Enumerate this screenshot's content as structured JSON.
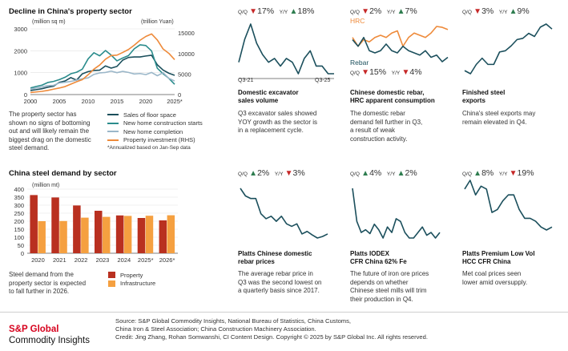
{
  "property": {
    "title": "Decline in China's property sector",
    "left_unit": "(million sq m)",
    "right_unit": "(trillion Yuan)",
    "body": [
      "The property sector has",
      "shown no signs of bottoming",
      "out and will likely remain the",
      "biggest drag on the domestic",
      "steel demand."
    ],
    "legend": [
      {
        "label": "Sales of floor space",
        "color": "#1b4f5c"
      },
      {
        "label": "New home construction starts",
        "color": "#2a8c8c"
      },
      {
        "label": "New home completion",
        "color": "#9bb7c9"
      },
      {
        "label": "Property investment (RHS)",
        "color": "#ee8a3a"
      }
    ],
    "footnote": "*Annualized based on Jan-Sep data"
  },
  "demand": {
    "title": "China steel demand by sector",
    "unit": "(million mt)",
    "body": [
      "Steel demand from the",
      "property sector is expected",
      "to fall further in 2026."
    ],
    "legend": [
      {
        "label": "Property",
        "color": "#b93020"
      },
      {
        "label": "Infrastructure",
        "color": "#f5a040"
      }
    ]
  },
  "panels": [
    {
      "qq_label": "Q/Q",
      "qq_dir": "down",
      "qq_val": "17%",
      "yy_label": "Y/Y",
      "yy_dir": "up",
      "yy_val": "18%",
      "title": [
        "Domestic excavator",
        "sales volume"
      ],
      "body": [
        "Q3 excavator sales showed",
        "YOY growth as the sector is",
        "in a replacement cycle."
      ],
      "x_start": "Q3-21",
      "x_end": "Q3-25"
    },
    {
      "qq_label": "Q/Q",
      "qq_dir": "down",
      "qq_val": "2%",
      "yy_label": "Y/Y",
      "yy_dir": "up",
      "yy_val": "7%",
      "hrc_label": "HRC",
      "rebar_label": "Rebar",
      "qq2_label": "Q/Q",
      "qq2_dir": "down",
      "qq2_val": "15%",
      "yy2_label": "Y/Y",
      "yy2_dir": "down",
      "yy2_val": "4%",
      "title": [
        "Chinese domestic rebar,",
        "HRC apparent consumption"
      ],
      "body": [
        "The domestic rebar",
        "demand fell further in Q3,",
        "a result of weak",
        "construction activity."
      ]
    },
    {
      "qq_label": "Q/Q",
      "qq_dir": "down",
      "qq_val": "3%",
      "yy_label": "Y/Y",
      "yy_dir": "up",
      "yy_val": "9%",
      "title": [
        "Finished steel",
        "exports"
      ],
      "body": [
        "China's steel exports may",
        "remain elevated in Q4."
      ]
    },
    {
      "qq_label": "Q/Q",
      "qq_dir": "up",
      "qq_val": "2%",
      "yy_label": "Y/Y",
      "yy_dir": "down",
      "yy_val": "3%",
      "title": [
        "Platts Chinese domestic",
        "rebar prices"
      ],
      "body": [
        "The average rebar price in",
        "Q3 was the second lowest on",
        "a quarterly basis since 2017."
      ]
    },
    {
      "qq_label": "Q/Q",
      "qq_dir": "up",
      "qq_val": "4%",
      "yy_label": "Y/Y",
      "yy_dir": "up",
      "yy_val": "2%",
      "title": [
        "Platts IODEX",
        "CFR China 62% Fe"
      ],
      "body": [
        "The future of iron ore prices",
        "depends on whether",
        "Chinese steel mills will trim",
        "their production in Q4."
      ]
    },
    {
      "qq_label": "Q/Q",
      "qq_dir": "up",
      "qq_val": "8%",
      "yy_label": "Y/Y",
      "yy_dir": "down",
      "yy_val": "19%",
      "title": [
        "Platts Premium Low Vol",
        "HCC CFR China"
      ],
      "body": [
        "Met coal prices seen",
        "lower amid oversupply."
      ]
    }
  ],
  "footer": {
    "brand_line1": "S&P Global",
    "brand_line2": "Commodity Insights",
    "source": [
      "Source: S&P Global Commodity Insights, National Bureau of Statistics, China Customs,",
      "China Iron & Steel Association; China Construction Machinery Association.",
      "Credit: Jing Zhang, Rohan Somwanshi, CI Content Design. Copyright © 2025 by S&P Global Inc. All rights reserved."
    ]
  },
  "chart_data": [
    {
      "type": "line",
      "title": "Decline in China's property sector",
      "left_unit": "(million sq m)",
      "right_unit": "(trillion Yuan)",
      "x": [
        2000,
        2001,
        2002,
        2003,
        2004,
        2005,
        2006,
        2007,
        2008,
        2009,
        2010,
        2011,
        2012,
        2013,
        2014,
        2015,
        2016,
        2017,
        2018,
        2019,
        2020,
        2021,
        2022,
        2023,
        2024,
        2025
      ],
      "x_tick_labels": [
        "2000",
        "2005",
        "2010",
        "2015",
        "2020",
        "2025*"
      ],
      "yleft_ticks": [
        "0",
        "1000",
        "2000",
        "3000"
      ],
      "yright_ticks": [
        "0",
        "5000",
        "10000",
        "15000"
      ],
      "ylim_left": [
        0,
        3000
      ],
      "ylim_right": [
        0,
        16000
      ],
      "series": [
        {
          "name": "Sales of floor space",
          "axis": "left",
          "color": "#1b4f5c",
          "values": [
            186,
            224,
            268,
            337,
            382,
            558,
            619,
            774,
            660,
            948,
            1047,
            1099,
            1113,
            1306,
            1206,
            1285,
            1573,
            1694,
            1717,
            1716,
            1761,
            1794,
            1358,
            1117,
            974,
            880
          ]
        },
        {
          "name": "New home construction starts",
          "axis": "left",
          "color": "#2a8c8c",
          "values": [
            300,
            370,
            430,
            550,
            600,
            680,
            790,
            950,
            1020,
            1160,
            1630,
            1910,
            1770,
            2010,
            1800,
            1540,
            1670,
            1780,
            2090,
            2270,
            2240,
            1990,
            1200,
            950,
            740,
            470
          ]
        },
        {
          "name": "New home completion",
          "axis": "left",
          "color": "#9bb7c9",
          "values": [
            250,
            300,
            350,
            410,
            420,
            530,
            560,
            600,
            660,
            720,
            760,
            920,
            990,
            1010,
            1070,
            1000,
            1060,
            1010,
            940,
            960,
            910,
            1010,
            860,
            1000,
            740,
            620
          ]
        },
        {
          "name": "Property investment (RHS)",
          "axis": "right",
          "color": "#ee8a3a",
          "values": [
            498,
            634,
            779,
            1015,
            1316,
            1591,
            1942,
            2528,
            3120,
            3624,
            4826,
            6180,
            7180,
            8601,
            9504,
            9598,
            10258,
            10980,
            12026,
            13219,
            14144,
            14760,
            13290,
            11090,
            10030,
            8500
          ]
        }
      ]
    },
    {
      "type": "bar",
      "title": "China steel demand by sector",
      "ylabel": "(million mt)",
      "categories": [
        "2020",
        "2021",
        "2022",
        "2023",
        "2024",
        "2025*",
        "2026*"
      ],
      "ylim": [
        0,
        400
      ],
      "y_ticks": [
        "0",
        "50",
        "100",
        "150",
        "200",
        "250",
        "300",
        "350",
        "400"
      ],
      "series": [
        {
          "name": "Property",
          "color": "#b93020",
          "values": [
            363,
            348,
            298,
            265,
            236,
            220,
            205
          ]
        },
        {
          "name": "Infrastructure",
          "color": "#f5a040",
          "values": [
            200,
            201,
            222,
            227,
            233,
            234,
            237
          ]
        }
      ]
    },
    {
      "type": "line",
      "title": "Domestic excavator sales volume",
      "x_tick_labels": [
        "Q3-21",
        "Q3-25"
      ],
      "series": [
        {
          "color": "#1b4f5c",
          "values": [
            6,
            12,
            16,
            11,
            8,
            6,
            7,
            5,
            7,
            6,
            3,
            7,
            9,
            5,
            5,
            3,
            3
          ]
        }
      ]
    },
    {
      "type": "line",
      "title": "Chinese domestic rebar, HRC apparent consumption",
      "series": [
        {
          "name": "HRC",
          "color": "#ee8a3a",
          "values": [
            6,
            4,
            5.5,
            5,
            6,
            6.5,
            6,
            7,
            7.5,
            4,
            6,
            7,
            6.5,
            6,
            7,
            8.5,
            8.3,
            7.8
          ]
        },
        {
          "name": "Rebar",
          "color": "#1b4f5c",
          "values": [
            5.5,
            4,
            6,
            3,
            2.5,
            3,
            4.5,
            3,
            2.5,
            4,
            3,
            2.5,
            2,
            3,
            1.5,
            2,
            0.5,
            1.5
          ]
        }
      ]
    },
    {
      "type": "line",
      "title": "Finished steel exports",
      "series": [
        {
          "color": "#1b4f5c",
          "values": [
            2,
            1.5,
            3,
            4,
            3,
            3,
            5,
            5.2,
            6,
            7,
            7.2,
            8,
            7.5,
            9,
            9.5,
            8.7
          ]
        }
      ]
    },
    {
      "type": "line",
      "title": "Platts Chinese domestic rebar prices",
      "series": [
        {
          "color": "#1b4f5c",
          "values": [
            10,
            8.5,
            8,
            8,
            5,
            4,
            4.5,
            3.5,
            4.5,
            3,
            2.5,
            3,
            1,
            1.5,
            0.8,
            0.2,
            0.5,
            1
          ]
        }
      ]
    },
    {
      "type": "line",
      "title": "Platts IODEX CFR China 62% Fe",
      "series": [
        {
          "color": "#1b4f5c",
          "values": [
            10,
            4,
            2,
            2.5,
            1.8,
            3.5,
            2.5,
            1,
            3,
            2,
            4.5,
            4,
            2,
            1,
            1,
            2,
            3,
            1.5,
            2,
            1,
            2
          ]
        }
      ]
    },
    {
      "type": "line",
      "title": "Platts Premium Low Vol HCC CFR China",
      "series": [
        {
          "color": "#1b4f5c",
          "values": [
            8,
            9.5,
            7,
            8.5,
            8,
            4,
            4.5,
            6,
            7,
            7,
            4.5,
            3,
            3,
            2.5,
            1.5,
            1,
            1.5
          ]
        }
      ]
    }
  ]
}
